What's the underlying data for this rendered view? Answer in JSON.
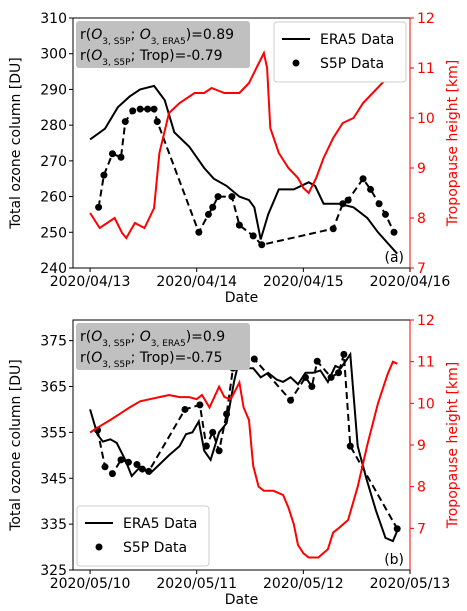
{
  "chart_data": [
    {
      "type": "line",
      "panel_label": "(a)",
      "xlabel": "Date",
      "ylabel": "Total ozone column [DU]",
      "y2label": "Tropopause height [km]",
      "xlim": [
        -0.16,
        3.0
      ],
      "xticks": [
        {
          "value": 0,
          "label": "2020/04/13"
        },
        {
          "value": 1,
          "label": "2020/04/14"
        },
        {
          "value": 2,
          "label": "2020/04/15"
        },
        {
          "value": 3,
          "label": "2020/04/16"
        }
      ],
      "ylim": [
        240,
        310
      ],
      "yticks": [
        240,
        250,
        260,
        270,
        280,
        290,
        300,
        310
      ],
      "y2lim": [
        7,
        12
      ],
      "y2ticks": [
        7,
        8,
        9,
        10,
        11,
        12
      ],
      "y2color": "#ff0000",
      "legend": "upper right",
      "annotation_box": "#c0c0c0",
      "annotations": [
        [
          {
            "text": "r("
          },
          {
            "text": "O",
            "italic": true
          },
          {
            "text": "3, S5P",
            "sub": true
          },
          {
            "text": "; "
          },
          {
            "text": "O",
            "italic": true
          },
          {
            "text": "3, ERA5",
            "sub": true
          },
          {
            "text": ")=0.89"
          }
        ],
        [
          {
            "text": "r("
          },
          {
            "text": "O",
            "italic": true
          },
          {
            "text": "3, S5P",
            "sub": true
          },
          {
            "text": "; Trop)=-0.79"
          }
        ]
      ],
      "series": [
        {
          "name": "ERA5 Data",
          "color": "#000000",
          "line": "solid",
          "x": [
            0,
            0.14,
            0.26,
            0.37,
            0.47,
            0.6,
            0.7,
            0.79,
            0.93,
            1.07,
            1.16,
            1.28,
            1.4,
            1.49,
            1.54,
            1.6,
            1.67,
            1.77,
            1.91,
            2.05,
            2.11,
            2.19,
            2.33,
            2.47,
            2.6,
            2.7,
            2.79,
            2.88
          ],
          "values": [
            276,
            279,
            285,
            288,
            290,
            291,
            287,
            278,
            274,
            268,
            265,
            263,
            260,
            259,
            257,
            248,
            255,
            262,
            262,
            264,
            263,
            258,
            258,
            257,
            254,
            250,
            247,
            244
          ]
        },
        {
          "name": "S5P Data",
          "color": "#000000",
          "line": "dashed",
          "marker": true,
          "x": [
            0.08,
            0.13,
            0.21,
            0.29,
            0.33,
            0.4,
            0.47,
            0.54,
            0.6,
            0.63,
            1.02,
            1.11,
            1.15,
            1.2,
            1.33,
            1.4,
            1.53,
            1.61,
            2.28,
            2.37,
            2.42,
            2.56,
            2.63,
            2.71,
            2.77,
            2.85
          ],
          "values": [
            257,
            266,
            272,
            271,
            281,
            284,
            284.5,
            284.5,
            284.5,
            281,
            250,
            255,
            257,
            260,
            260,
            252,
            249,
            246.5,
            251,
            258,
            259,
            265,
            262,
            258,
            255,
            250
          ]
        },
        {
          "color": "#ff0000",
          "line": "solid",
          "axis": "y2",
          "x": [
            0,
            0.09,
            0.23,
            0.3,
            0.34,
            0.42,
            0.51,
            0.6,
            0.65,
            0.74,
            0.84,
            0.98,
            1.07,
            1.14,
            1.26,
            1.4,
            1.49,
            1.56,
            1.63,
            1.66,
            1.69,
            1.77,
            1.86,
            1.95,
            2.0,
            2.05,
            2.12,
            2.19,
            2.28,
            2.37,
            2.47,
            2.56,
            2.65,
            2.74,
            2.81,
            2.9
          ],
          "values": [
            8.1,
            7.8,
            8.0,
            7.7,
            7.6,
            7.9,
            7.8,
            8.2,
            9.3,
            10.1,
            10.3,
            10.5,
            10.5,
            10.6,
            10.5,
            10.5,
            10.7,
            11.0,
            11.3,
            11.0,
            9.8,
            9.3,
            9.0,
            8.8,
            8.6,
            8.5,
            8.8,
            9.2,
            9.6,
            9.9,
            10.0,
            10.3,
            10.5,
            10.7,
            10.85,
            10.85
          ]
        }
      ]
    },
    {
      "type": "line",
      "panel_label": "(b)",
      "xlabel": "Date",
      "ylabel": "Total ozone column [DU]",
      "y2label": "Tropopause height [km]",
      "xlim": [
        -0.16,
        3.0
      ],
      "xticks": [
        {
          "value": 0,
          "label": "2020/05/10"
        },
        {
          "value": 1,
          "label": "2020/05/11"
        },
        {
          "value": 2,
          "label": "2020/05/12"
        },
        {
          "value": 3,
          "label": "2020/05/13"
        }
      ],
      "ylim": [
        325,
        379.5
      ],
      "yticks": [
        325,
        335,
        345,
        355,
        365,
        375
      ],
      "y2lim": [
        6,
        12
      ],
      "y2ticks": [
        7,
        8,
        9,
        10,
        11,
        12
      ],
      "y2color": "#ff0000",
      "legend": "lower left",
      "annotation_box": "#c0c0c0",
      "annotations": [
        [
          {
            "text": "r("
          },
          {
            "text": "O",
            "italic": true
          },
          {
            "text": "3, S5P",
            "sub": true
          },
          {
            "text": "; "
          },
          {
            "text": "O",
            "italic": true
          },
          {
            "text": "3, ERA5",
            "sub": true
          },
          {
            "text": ")=0.9"
          }
        ],
        [
          {
            "text": "r("
          },
          {
            "text": "O",
            "italic": true
          },
          {
            "text": "3, S5P",
            "sub": true
          },
          {
            "text": "; Trop)=-0.75"
          }
        ]
      ],
      "series": [
        {
          "name": "ERA5 Data",
          "color": "#000000",
          "line": "solid",
          "x": [
            0,
            0.07,
            0.12,
            0.19,
            0.25,
            0.33,
            0.39,
            0.47,
            0.56,
            0.65,
            0.74,
            0.84,
            0.9,
            0.96,
            1.02,
            1.07,
            1.13,
            1.21,
            1.28,
            1.35,
            1.4,
            1.47,
            1.53,
            1.6,
            1.67,
            1.75,
            1.81,
            1.88,
            1.95,
            2.02,
            2.09,
            2.16,
            2.23,
            2.3,
            2.35,
            2.44,
            2.51,
            2.59,
            2.68,
            2.77,
            2.84,
            2.88
          ],
          "values": [
            360,
            354.5,
            353,
            353.5,
            352.7,
            349,
            345.5,
            347.5,
            346,
            348,
            350,
            352,
            354.6,
            355,
            357.4,
            351,
            349,
            355,
            357,
            366,
            371,
            369,
            369,
            367,
            368,
            366.5,
            366,
            367,
            365.5,
            368,
            368,
            368.5,
            366,
            369.5,
            369,
            372,
            352,
            345,
            338,
            332,
            331.3,
            333.5
          ]
        },
        {
          "name": "S5P Data",
          "color": "#000000",
          "line": "dashed",
          "marker": true,
          "x": [
            0.07,
            0.14,
            0.21,
            0.29,
            0.36,
            0.44,
            0.49,
            0.55,
            0.89,
            1.03,
            1.09,
            1.15,
            1.21,
            1.28,
            1.34,
            1.38,
            1.45,
            1.54,
            1.88,
            2.02,
            2.08,
            2.13,
            2.26,
            2.33,
            2.38,
            2.44,
            2.88
          ],
          "values": [
            355.5,
            347.5,
            346,
            349,
            348.5,
            348,
            347,
            346.5,
            360,
            361,
            352,
            355,
            351,
            359,
            369,
            371,
            373,
            371,
            362,
            367,
            365,
            370.5,
            367,
            368,
            372,
            352,
            334
          ]
        },
        {
          "color": "#ff0000",
          "line": "solid",
          "axis": "y2",
          "x": [
            0,
            0.09,
            0.19,
            0.28,
            0.37,
            0.47,
            0.56,
            0.65,
            0.74,
            0.84,
            0.93,
            1.0,
            1.05,
            1.12,
            1.21,
            1.26,
            1.32,
            1.4,
            1.44,
            1.49,
            1.53,
            1.58,
            1.63,
            1.72,
            1.81,
            1.86,
            1.91,
            1.95,
            2.0,
            2.05,
            2.14,
            2.23,
            2.28,
            2.33,
            2.42,
            2.51,
            2.6,
            2.7,
            2.79,
            2.84,
            2.88
          ],
          "values": [
            9.3,
            9.45,
            9.6,
            9.75,
            9.9,
            10.05,
            10.1,
            10.15,
            10.2,
            10.15,
            10.15,
            10.1,
            10.2,
            9.9,
            10.4,
            10.15,
            10.1,
            10.5,
            9.9,
            9.6,
            8.5,
            8.0,
            7.9,
            7.9,
            7.8,
            7.5,
            7.1,
            6.6,
            6.4,
            6.3,
            6.3,
            6.5,
            6.9,
            7.0,
            7.2,
            8.0,
            9.0,
            10.0,
            10.7,
            11.0,
            10.95
          ]
        }
      ]
    }
  ]
}
